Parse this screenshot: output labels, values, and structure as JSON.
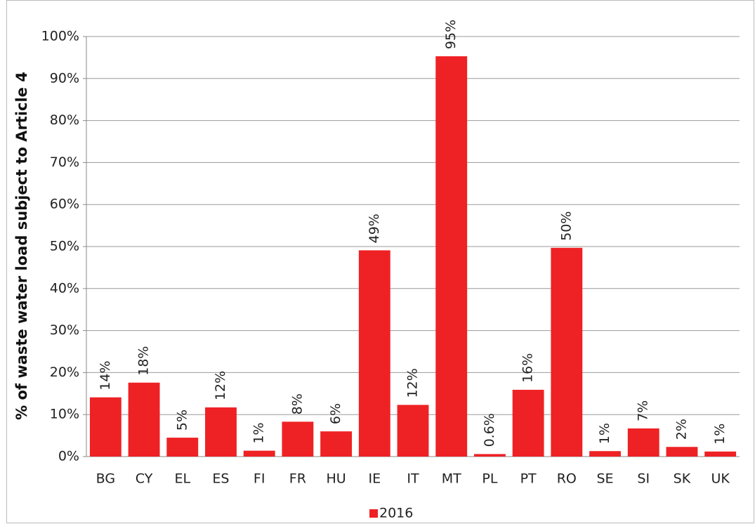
{
  "chart_data": {
    "type": "bar",
    "y_label": "% of waste water load subject to Article 4",
    "categories": [
      "BG",
      "CY",
      "EL",
      "ES",
      "FI",
      "FR",
      "HU",
      "IE",
      "IT",
      "MT",
      "PL",
      "PT",
      "RO",
      "SE",
      "SI",
      "SK",
      "UK"
    ],
    "series": [
      {
        "name": "2016",
        "color": "#ee2224",
        "values": [
          14.1,
          17.6,
          4.5,
          11.7,
          1.4,
          8.3,
          6.0,
          49.1,
          12.3,
          95.3,
          0.6,
          15.9,
          49.7,
          1.3,
          6.7,
          2.3,
          1.2
        ],
        "value_labels": [
          "14%",
          "18%",
          "5%",
          "12%",
          "1%",
          "8%",
          "6%",
          "49%",
          "12%",
          "95%",
          "0.6%",
          "16%",
          "50%",
          "1%",
          "7%",
          "2%",
          "1%"
        ]
      }
    ],
    "ylim": [
      0,
      100
    ],
    "yticks": [
      {
        "value": 0,
        "label": "0%"
      },
      {
        "value": 10,
        "label": "10%"
      },
      {
        "value": 20,
        "label": "20%"
      },
      {
        "value": 30,
        "label": "30%"
      },
      {
        "value": 40,
        "label": "40%"
      },
      {
        "value": 50,
        "label": "50%"
      },
      {
        "value": 60,
        "label": "60%"
      },
      {
        "value": 70,
        "label": "70%"
      },
      {
        "value": 80,
        "label": "80%"
      },
      {
        "value": 90,
        "label": "90%"
      },
      {
        "value": 100,
        "label": "100%"
      }
    ],
    "grid": true,
    "legend": "bottom"
  }
}
